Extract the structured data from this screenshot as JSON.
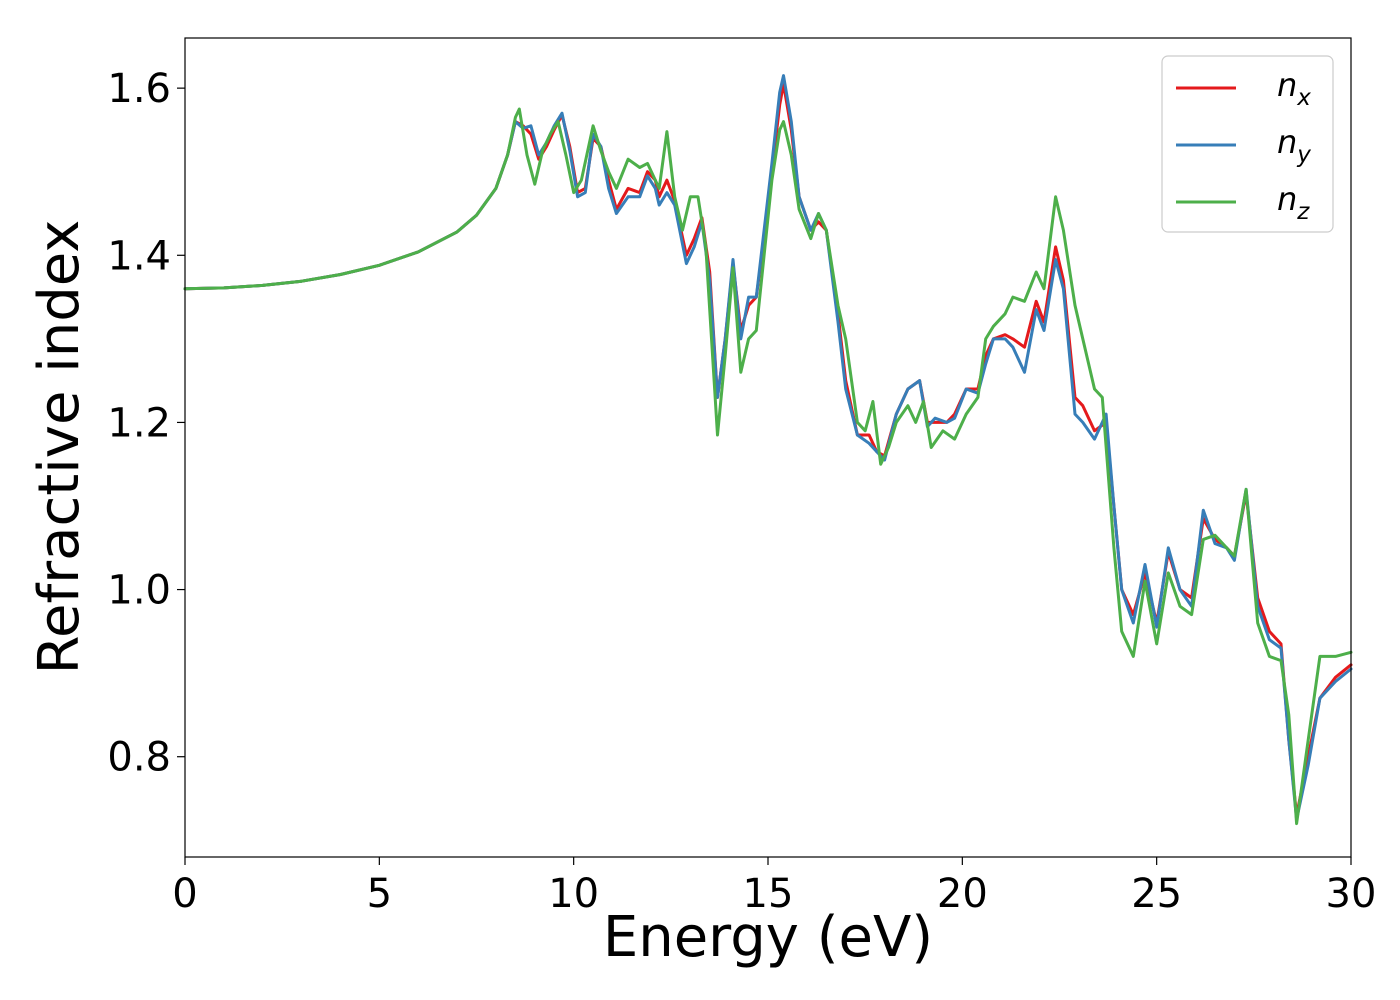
{
  "chart_data": {
    "type": "line",
    "xlabel": "Energy (eV)",
    "ylabel": "Refractive index",
    "xlim": [
      0,
      30
    ],
    "ylim": [
      0.68,
      1.66
    ],
    "xticks": [
      0,
      5,
      10,
      15,
      20,
      25,
      30
    ],
    "xtick_labels": [
      "0",
      "5",
      "10",
      "15",
      "20",
      "25",
      "30"
    ],
    "yticks": [
      0.8,
      1.0,
      1.2,
      1.4,
      1.6
    ],
    "ytick_labels": [
      "0.8",
      "1.0",
      "1.2",
      "1.4",
      "1.6"
    ],
    "grid": false,
    "legend_position": "top-right",
    "series": [
      {
        "name": "n_x",
        "label_base": "n",
        "label_sub": "x",
        "color": "#e41a1c",
        "points": [
          [
            0,
            1.36
          ],
          [
            1,
            1.361
          ],
          [
            2,
            1.364
          ],
          [
            3,
            1.369
          ],
          [
            4,
            1.377
          ],
          [
            5,
            1.388
          ],
          [
            6,
            1.404
          ],
          [
            7,
            1.428
          ],
          [
            7.5,
            1.448
          ],
          [
            8,
            1.48
          ],
          [
            8.3,
            1.52
          ],
          [
            8.5,
            1.56
          ],
          [
            8.7,
            1.555
          ],
          [
            8.9,
            1.545
          ],
          [
            9.1,
            1.515
          ],
          [
            9.3,
            1.53
          ],
          [
            9.5,
            1.55
          ],
          [
            9.7,
            1.568
          ],
          [
            9.9,
            1.53
          ],
          [
            10.1,
            1.475
          ],
          [
            10.3,
            1.48
          ],
          [
            10.5,
            1.54
          ],
          [
            10.7,
            1.53
          ],
          [
            10.9,
            1.49
          ],
          [
            11.1,
            1.455
          ],
          [
            11.4,
            1.48
          ],
          [
            11.7,
            1.475
          ],
          [
            11.9,
            1.5
          ],
          [
            12.1,
            1.49
          ],
          [
            12.2,
            1.47
          ],
          [
            12.4,
            1.49
          ],
          [
            12.6,
            1.465
          ],
          [
            12.9,
            1.4
          ],
          [
            13.1,
            1.42
          ],
          [
            13.3,
            1.445
          ],
          [
            13.5,
            1.38
          ],
          [
            13.7,
            1.23
          ],
          [
            13.9,
            1.3
          ],
          [
            14.1,
            1.39
          ],
          [
            14.3,
            1.31
          ],
          [
            14.5,
            1.34
          ],
          [
            14.7,
            1.35
          ],
          [
            14.9,
            1.42
          ],
          [
            15.1,
            1.5
          ],
          [
            15.3,
            1.58
          ],
          [
            15.4,
            1.605
          ],
          [
            15.6,
            1.55
          ],
          [
            15.8,
            1.47
          ],
          [
            16.1,
            1.43
          ],
          [
            16.3,
            1.44
          ],
          [
            16.5,
            1.43
          ],
          [
            16.8,
            1.33
          ],
          [
            17,
            1.25
          ],
          [
            17.3,
            1.185
          ],
          [
            17.6,
            1.185
          ],
          [
            17.8,
            1.165
          ],
          [
            18,
            1.16
          ],
          [
            18.3,
            1.21
          ],
          [
            18.6,
            1.24
          ],
          [
            18.9,
            1.25
          ],
          [
            19.1,
            1.2
          ],
          [
            19.3,
            1.2
          ],
          [
            19.6,
            1.2
          ],
          [
            19.8,
            1.21
          ],
          [
            20.1,
            1.24
          ],
          [
            20.4,
            1.24
          ],
          [
            20.6,
            1.28
          ],
          [
            20.8,
            1.3
          ],
          [
            21.1,
            1.305
          ],
          [
            21.3,
            1.3
          ],
          [
            21.6,
            1.29
          ],
          [
            21.9,
            1.345
          ],
          [
            22.1,
            1.32
          ],
          [
            22.4,
            1.41
          ],
          [
            22.6,
            1.37
          ],
          [
            22.9,
            1.23
          ],
          [
            23.1,
            1.22
          ],
          [
            23.4,
            1.19
          ],
          [
            23.7,
            1.2
          ],
          [
            23.9,
            1.1
          ],
          [
            24.1,
            1.0
          ],
          [
            24.4,
            0.97
          ],
          [
            24.7,
            1.02
          ],
          [
            25,
            0.96
          ],
          [
            25.3,
            1.045
          ],
          [
            25.6,
            1.0
          ],
          [
            25.9,
            0.99
          ],
          [
            26.2,
            1.085
          ],
          [
            26.5,
            1.06
          ],
          [
            26.8,
            1.05
          ],
          [
            27,
            1.04
          ],
          [
            27.3,
            1.115
          ],
          [
            27.6,
            0.99
          ],
          [
            27.9,
            0.95
          ],
          [
            28.2,
            0.935
          ],
          [
            28.4,
            0.82
          ],
          [
            28.6,
            0.73
          ],
          [
            28.9,
            0.8
          ],
          [
            29.2,
            0.87
          ],
          [
            29.6,
            0.895
          ],
          [
            30,
            0.91
          ]
        ]
      },
      {
        "name": "n_y",
        "label_base": "n",
        "label_sub": "y",
        "color": "#377eb8",
        "points": [
          [
            0,
            1.36
          ],
          [
            1,
            1.361
          ],
          [
            2,
            1.364
          ],
          [
            3,
            1.369
          ],
          [
            4,
            1.377
          ],
          [
            5,
            1.388
          ],
          [
            6,
            1.404
          ],
          [
            7,
            1.428
          ],
          [
            7.5,
            1.448
          ],
          [
            8,
            1.48
          ],
          [
            8.3,
            1.52
          ],
          [
            8.5,
            1.56
          ],
          [
            8.7,
            1.552
          ],
          [
            8.9,
            1.555
          ],
          [
            9.1,
            1.52
          ],
          [
            9.3,
            1.535
          ],
          [
            9.5,
            1.555
          ],
          [
            9.7,
            1.57
          ],
          [
            9.9,
            1.525
          ],
          [
            10.1,
            1.47
          ],
          [
            10.3,
            1.475
          ],
          [
            10.5,
            1.545
          ],
          [
            10.7,
            1.53
          ],
          [
            10.9,
            1.48
          ],
          [
            11.1,
            1.45
          ],
          [
            11.4,
            1.47
          ],
          [
            11.7,
            1.47
          ],
          [
            11.9,
            1.495
          ],
          [
            12.1,
            1.48
          ],
          [
            12.2,
            1.46
          ],
          [
            12.4,
            1.475
          ],
          [
            12.6,
            1.46
          ],
          [
            12.9,
            1.39
          ],
          [
            13.1,
            1.41
          ],
          [
            13.3,
            1.44
          ],
          [
            13.5,
            1.37
          ],
          [
            13.7,
            1.23
          ],
          [
            13.9,
            1.3
          ],
          [
            14.1,
            1.395
          ],
          [
            14.3,
            1.3
          ],
          [
            14.5,
            1.35
          ],
          [
            14.7,
            1.35
          ],
          [
            14.9,
            1.43
          ],
          [
            15.1,
            1.51
          ],
          [
            15.3,
            1.595
          ],
          [
            15.4,
            1.615
          ],
          [
            15.6,
            1.56
          ],
          [
            15.8,
            1.47
          ],
          [
            16.1,
            1.43
          ],
          [
            16.3,
            1.45
          ],
          [
            16.5,
            1.43
          ],
          [
            16.8,
            1.32
          ],
          [
            17,
            1.24
          ],
          [
            17.3,
            1.185
          ],
          [
            17.6,
            1.175
          ],
          [
            17.8,
            1.165
          ],
          [
            18,
            1.155
          ],
          [
            18.3,
            1.21
          ],
          [
            18.6,
            1.24
          ],
          [
            18.9,
            1.25
          ],
          [
            19.1,
            1.195
          ],
          [
            19.3,
            1.205
          ],
          [
            19.6,
            1.2
          ],
          [
            19.8,
            1.205
          ],
          [
            20.1,
            1.24
          ],
          [
            20.4,
            1.235
          ],
          [
            20.6,
            1.27
          ],
          [
            20.8,
            1.3
          ],
          [
            21.1,
            1.3
          ],
          [
            21.3,
            1.29
          ],
          [
            21.6,
            1.26
          ],
          [
            21.9,
            1.335
          ],
          [
            22.1,
            1.31
          ],
          [
            22.4,
            1.395
          ],
          [
            22.6,
            1.36
          ],
          [
            22.9,
            1.21
          ],
          [
            23.1,
            1.2
          ],
          [
            23.4,
            1.18
          ],
          [
            23.7,
            1.21
          ],
          [
            23.9,
            1.1
          ],
          [
            24.1,
            1.0
          ],
          [
            24.4,
            0.96
          ],
          [
            24.7,
            1.03
          ],
          [
            25,
            0.955
          ],
          [
            25.3,
            1.05
          ],
          [
            25.6,
            1.0
          ],
          [
            25.9,
            0.98
          ],
          [
            26.2,
            1.095
          ],
          [
            26.5,
            1.055
          ],
          [
            26.8,
            1.05
          ],
          [
            27,
            1.035
          ],
          [
            27.3,
            1.12
          ],
          [
            27.6,
            0.98
          ],
          [
            27.9,
            0.94
          ],
          [
            28.2,
            0.93
          ],
          [
            28.4,
            0.82
          ],
          [
            28.6,
            0.725
          ],
          [
            28.9,
            0.79
          ],
          [
            29.2,
            0.87
          ],
          [
            29.6,
            0.89
          ],
          [
            30,
            0.905
          ]
        ]
      },
      {
        "name": "n_z",
        "label_base": "n",
        "label_sub": "z",
        "color": "#4daf4a",
        "points": [
          [
            0,
            1.36
          ],
          [
            1,
            1.361
          ],
          [
            2,
            1.364
          ],
          [
            3,
            1.369
          ],
          [
            4,
            1.377
          ],
          [
            5,
            1.388
          ],
          [
            6,
            1.404
          ],
          [
            7,
            1.428
          ],
          [
            7.5,
            1.448
          ],
          [
            8,
            1.48
          ],
          [
            8.3,
            1.52
          ],
          [
            8.5,
            1.565
          ],
          [
            8.6,
            1.575
          ],
          [
            8.8,
            1.52
          ],
          [
            9,
            1.485
          ],
          [
            9.2,
            1.525
          ],
          [
            9.4,
            1.545
          ],
          [
            9.6,
            1.56
          ],
          [
            9.8,
            1.52
          ],
          [
            10,
            1.475
          ],
          [
            10.2,
            1.49
          ],
          [
            10.5,
            1.555
          ],
          [
            10.7,
            1.525
          ],
          [
            10.9,
            1.5
          ],
          [
            11.1,
            1.48
          ],
          [
            11.4,
            1.515
          ],
          [
            11.7,
            1.505
          ],
          [
            11.9,
            1.51
          ],
          [
            12.1,
            1.49
          ],
          [
            12.2,
            1.48
          ],
          [
            12.4,
            1.548
          ],
          [
            12.6,
            1.47
          ],
          [
            12.8,
            1.43
          ],
          [
            13,
            1.47
          ],
          [
            13.2,
            1.47
          ],
          [
            13.4,
            1.41
          ],
          [
            13.6,
            1.26
          ],
          [
            13.7,
            1.185
          ],
          [
            13.9,
            1.28
          ],
          [
            14.1,
            1.385
          ],
          [
            14.3,
            1.26
          ],
          [
            14.5,
            1.3
          ],
          [
            14.7,
            1.31
          ],
          [
            14.9,
            1.4
          ],
          [
            15.1,
            1.49
          ],
          [
            15.3,
            1.55
          ],
          [
            15.4,
            1.56
          ],
          [
            15.6,
            1.52
          ],
          [
            15.8,
            1.455
          ],
          [
            16.1,
            1.42
          ],
          [
            16.3,
            1.45
          ],
          [
            16.5,
            1.43
          ],
          [
            16.8,
            1.34
          ],
          [
            17,
            1.3
          ],
          [
            17.3,
            1.2
          ],
          [
            17.5,
            1.19
          ],
          [
            17.7,
            1.225
          ],
          [
            17.9,
            1.15
          ],
          [
            18.1,
            1.17
          ],
          [
            18.3,
            1.2
          ],
          [
            18.6,
            1.22
          ],
          [
            18.8,
            1.2
          ],
          [
            19,
            1.225
          ],
          [
            19.2,
            1.17
          ],
          [
            19.5,
            1.19
          ],
          [
            19.8,
            1.18
          ],
          [
            20.1,
            1.21
          ],
          [
            20.4,
            1.23
          ],
          [
            20.6,
            1.3
          ],
          [
            20.8,
            1.315
          ],
          [
            21.1,
            1.33
          ],
          [
            21.3,
            1.35
          ],
          [
            21.6,
            1.345
          ],
          [
            21.9,
            1.38
          ],
          [
            22.1,
            1.36
          ],
          [
            22.4,
            1.47
          ],
          [
            22.6,
            1.43
          ],
          [
            22.9,
            1.34
          ],
          [
            23.1,
            1.3
          ],
          [
            23.4,
            1.24
          ],
          [
            23.6,
            1.23
          ],
          [
            23.9,
            1.05
          ],
          [
            24.1,
            0.95
          ],
          [
            24.4,
            0.92
          ],
          [
            24.7,
            1.01
          ],
          [
            25,
            0.935
          ],
          [
            25.3,
            1.02
          ],
          [
            25.6,
            0.98
          ],
          [
            25.9,
            0.97
          ],
          [
            26.2,
            1.06
          ],
          [
            26.5,
            1.065
          ],
          [
            26.8,
            1.05
          ],
          [
            27,
            1.04
          ],
          [
            27.3,
            1.12
          ],
          [
            27.6,
            0.96
          ],
          [
            27.9,
            0.92
          ],
          [
            28.2,
            0.915
          ],
          [
            28.4,
            0.85
          ],
          [
            28.6,
            0.72
          ],
          [
            28.9,
            0.82
          ],
          [
            29.2,
            0.92
          ],
          [
            29.6,
            0.92
          ],
          [
            30,
            0.925
          ]
        ]
      }
    ]
  }
}
